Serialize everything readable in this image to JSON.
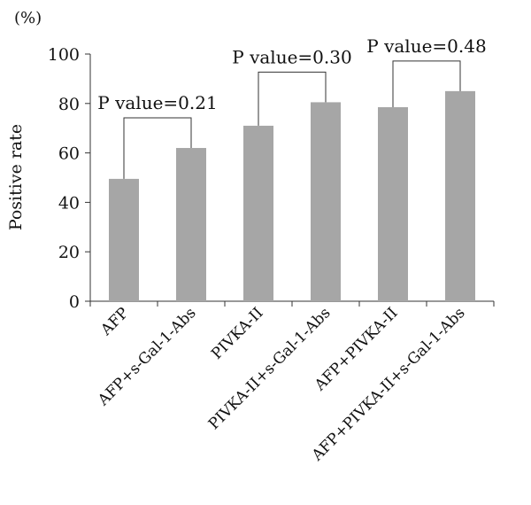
{
  "chart_data": {
    "type": "bar",
    "categories": [
      "AFP",
      "AFP+s-Gal-1-Abs",
      "PIVKA-II",
      "PIVKA-II+s-Gal-1-Abs",
      "AFP+PIVKA-II",
      "AFP+PIVKA-II+s-Gal-1-Abs"
    ],
    "values": [
      49.5,
      62,
      71,
      80.5,
      78.5,
      85
    ],
    "ylabel": "Positive rate",
    "unit": "(%)",
    "ylim": [
      0,
      100
    ],
    "yticks": [
      0,
      20,
      40,
      60,
      80,
      100
    ],
    "grid": false,
    "legend": "none",
    "bar_color": "#a6a6a6",
    "comparisons": [
      {
        "from": 0,
        "to": 1,
        "label": "P value=0.21"
      },
      {
        "from": 2,
        "to": 3,
        "label": "P value=0.30"
      },
      {
        "from": 4,
        "to": 5,
        "label": "P value=0.48"
      }
    ]
  }
}
